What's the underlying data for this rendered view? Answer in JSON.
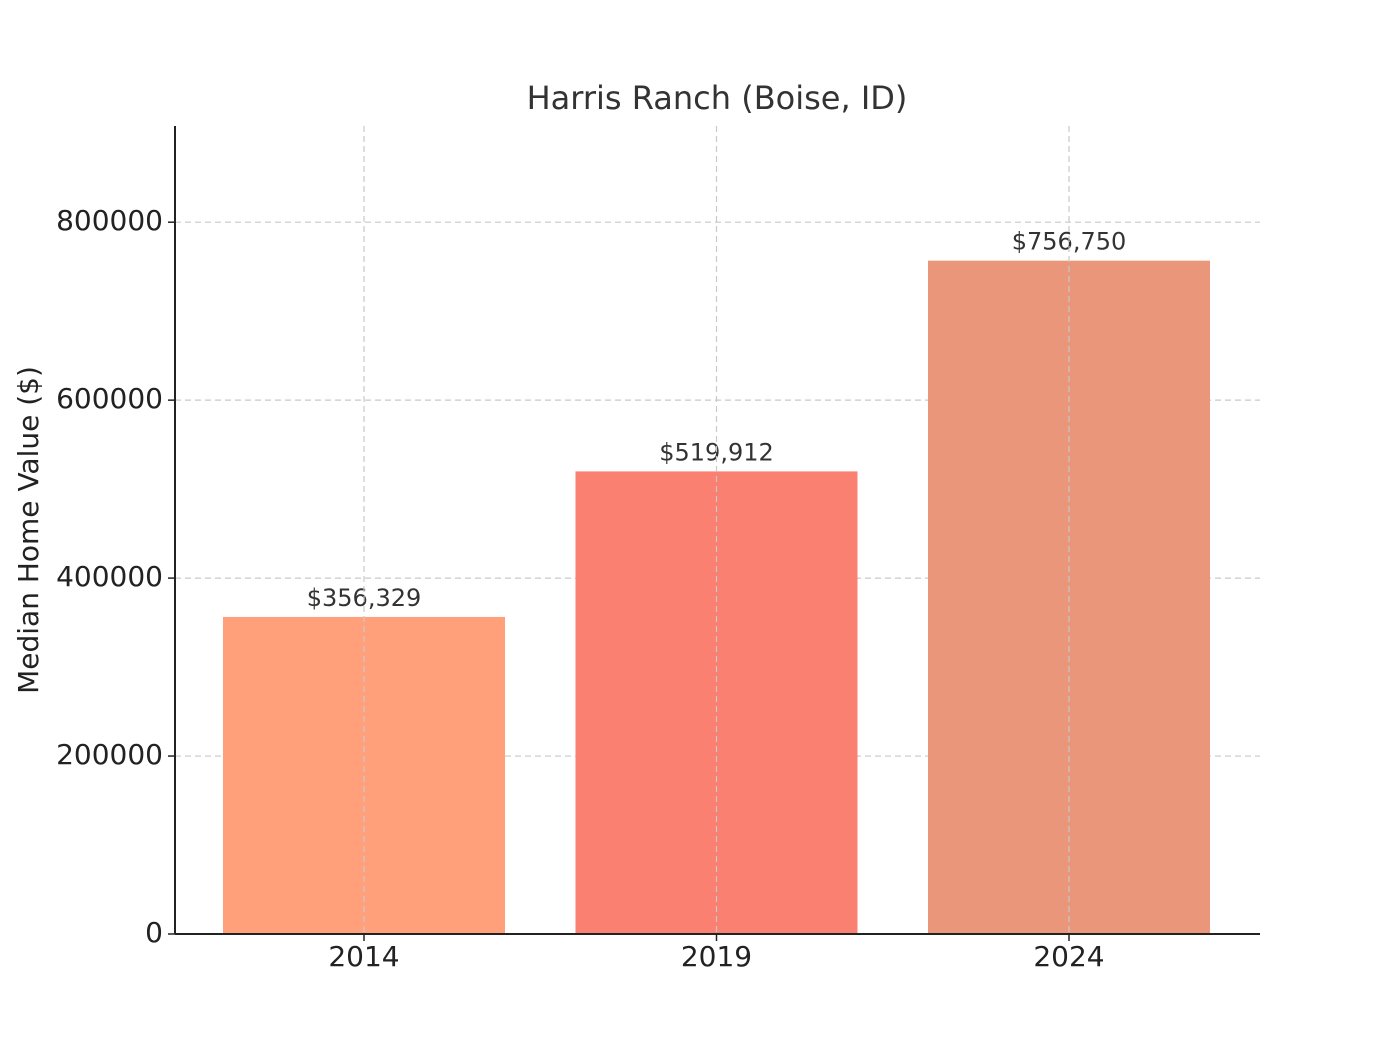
{
  "chart_data": {
    "type": "bar",
    "title": "Harris Ranch (Boise, ID)",
    "y_label": "Median Home Value ($)",
    "categories": [
      "2014",
      "2019",
      "2024"
    ],
    "values": [
      356329,
      519912,
      756750
    ],
    "value_labels": [
      "$356,329",
      "$519,912",
      "$756,750"
    ],
    "colors": [
      "#FFA07A",
      "#FA8072",
      "#E9967A"
    ],
    "ylim": [
      0,
      908100
    ],
    "yticks": [
      0,
      200000,
      400000,
      600000,
      800000
    ],
    "grid": true
  }
}
